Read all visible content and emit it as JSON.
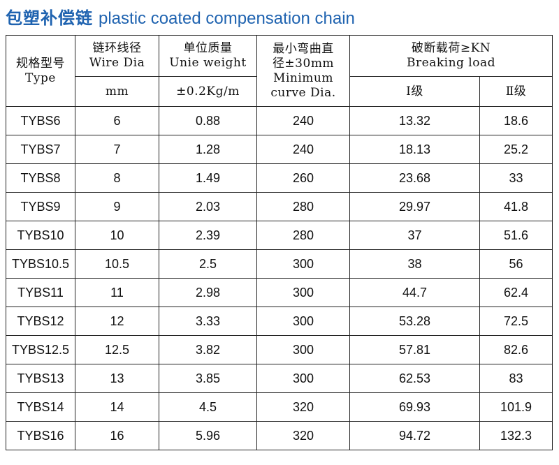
{
  "header": {
    "title_cn": "包塑补偿链",
    "title_en": "plastic coated compensation chain"
  },
  "table": {
    "head_row1": [
      [
        "规格型号",
        "Type"
      ],
      [
        "链环线径",
        "Wire Dia"
      ],
      [
        "单位质量",
        "Unie weight"
      ],
      [
        "最小弯曲直",
        "径±30mm",
        "Minimum",
        "curve Dia."
      ],
      [
        "破断载荷≥KN",
        "Breaking load"
      ]
    ],
    "head_row2": [
      "mm",
      "±0.2Kg/m",
      "Ⅰ级",
      "Ⅱ级"
    ],
    "rows": [
      [
        "TYBS6",
        6,
        0.88,
        240,
        13.32,
        18.6
      ],
      [
        "TYBS7",
        7,
        1.28,
        240,
        18.13,
        25.2
      ],
      [
        "TYBS8",
        8,
        1.49,
        260,
        23.68,
        33
      ],
      [
        "TYBS9",
        9,
        2.03,
        280,
        29.97,
        41.8
      ],
      [
        "TYBS10",
        10,
        2.39,
        280,
        37,
        51.6
      ],
      [
        "TYBS10.5",
        10.5,
        2.5,
        300,
        38,
        56
      ],
      [
        "TYBS11",
        11,
        2.98,
        300,
        44.7,
        62.4
      ],
      [
        "TYBS12",
        12,
        3.33,
        300,
        53.28,
        72.5
      ],
      [
        "TYBS12.5",
        12.5,
        3.82,
        300,
        57.81,
        82.6
      ],
      [
        "TYBS13",
        13,
        3.85,
        300,
        62.53,
        83
      ],
      [
        "TYBS14",
        14,
        4.5,
        320,
        69.93,
        101.9
      ],
      [
        "TYBS16",
        16,
        5.96,
        320,
        94.72,
        132.3
      ]
    ]
  }
}
